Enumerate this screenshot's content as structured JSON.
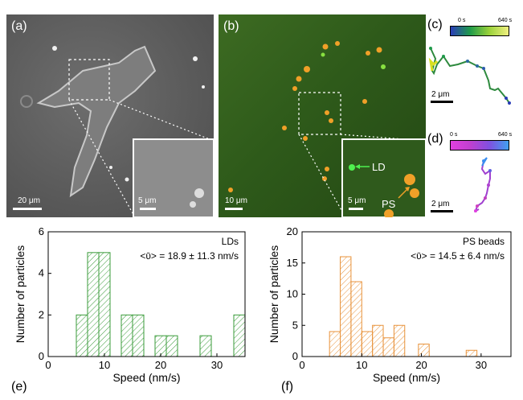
{
  "panels": {
    "a": {
      "label": "(a)",
      "scale_main": "20 μm",
      "scale_inset": "5 μm"
    },
    "b": {
      "label": "(b)",
      "scale_main": "10 μm",
      "scale_inset": "5 μm",
      "annot_ld": "LD",
      "annot_ps": "PS"
    },
    "c": {
      "label": "(c)",
      "cbar_start": "0 s",
      "cbar_end": "640 s",
      "scale": "2 μm"
    },
    "d": {
      "label": "(d)",
      "cbar_start": "0 s",
      "cbar_end": "640 s",
      "scale": "2 μm"
    },
    "e": {
      "label": "(e)"
    },
    "f": {
      "label": "(f)"
    }
  },
  "chart_data": [
    {
      "type": "bar",
      "panel": "e",
      "legend_title": "LDs",
      "annotation": "<ῡ> = 18.9 ± 11.3 nm/s",
      "xlabel": "Speed (nm/s)",
      "ylabel": "Number of particles",
      "xlim": [
        0,
        35
      ],
      "ylim": [
        0,
        6
      ],
      "xticks": [
        0,
        10,
        20,
        30
      ],
      "yticks": [
        0,
        2,
        4,
        6
      ],
      "bin_width": 2,
      "bins_left": [
        5,
        7,
        9,
        13,
        15,
        19,
        21,
        27,
        33
      ],
      "values": [
        2,
        5,
        5,
        2,
        2,
        1,
        1,
        1,
        2
      ],
      "color": "#3a9b3a"
    },
    {
      "type": "bar",
      "panel": "f",
      "legend_title": "PS beads",
      "annotation": "<ῡ> = 14.5 ± 6.4 nm/s",
      "xlabel": "Speed (nm/s)",
      "ylabel": "Number of particles",
      "xlim": [
        0,
        35
      ],
      "ylim": [
        0,
        20
      ],
      "xticks": [
        0,
        10,
        20,
        30
      ],
      "yticks": [
        0,
        5,
        10,
        15,
        20
      ],
      "bin_width": 1.8,
      "bins_left": [
        4.6,
        6.4,
        8.2,
        10.0,
        11.8,
        13.6,
        15.4,
        19.5,
        27.5
      ],
      "values": [
        4,
        16,
        12,
        4,
        5,
        3,
        5,
        2,
        1
      ],
      "color": "#e8923a"
    }
  ]
}
